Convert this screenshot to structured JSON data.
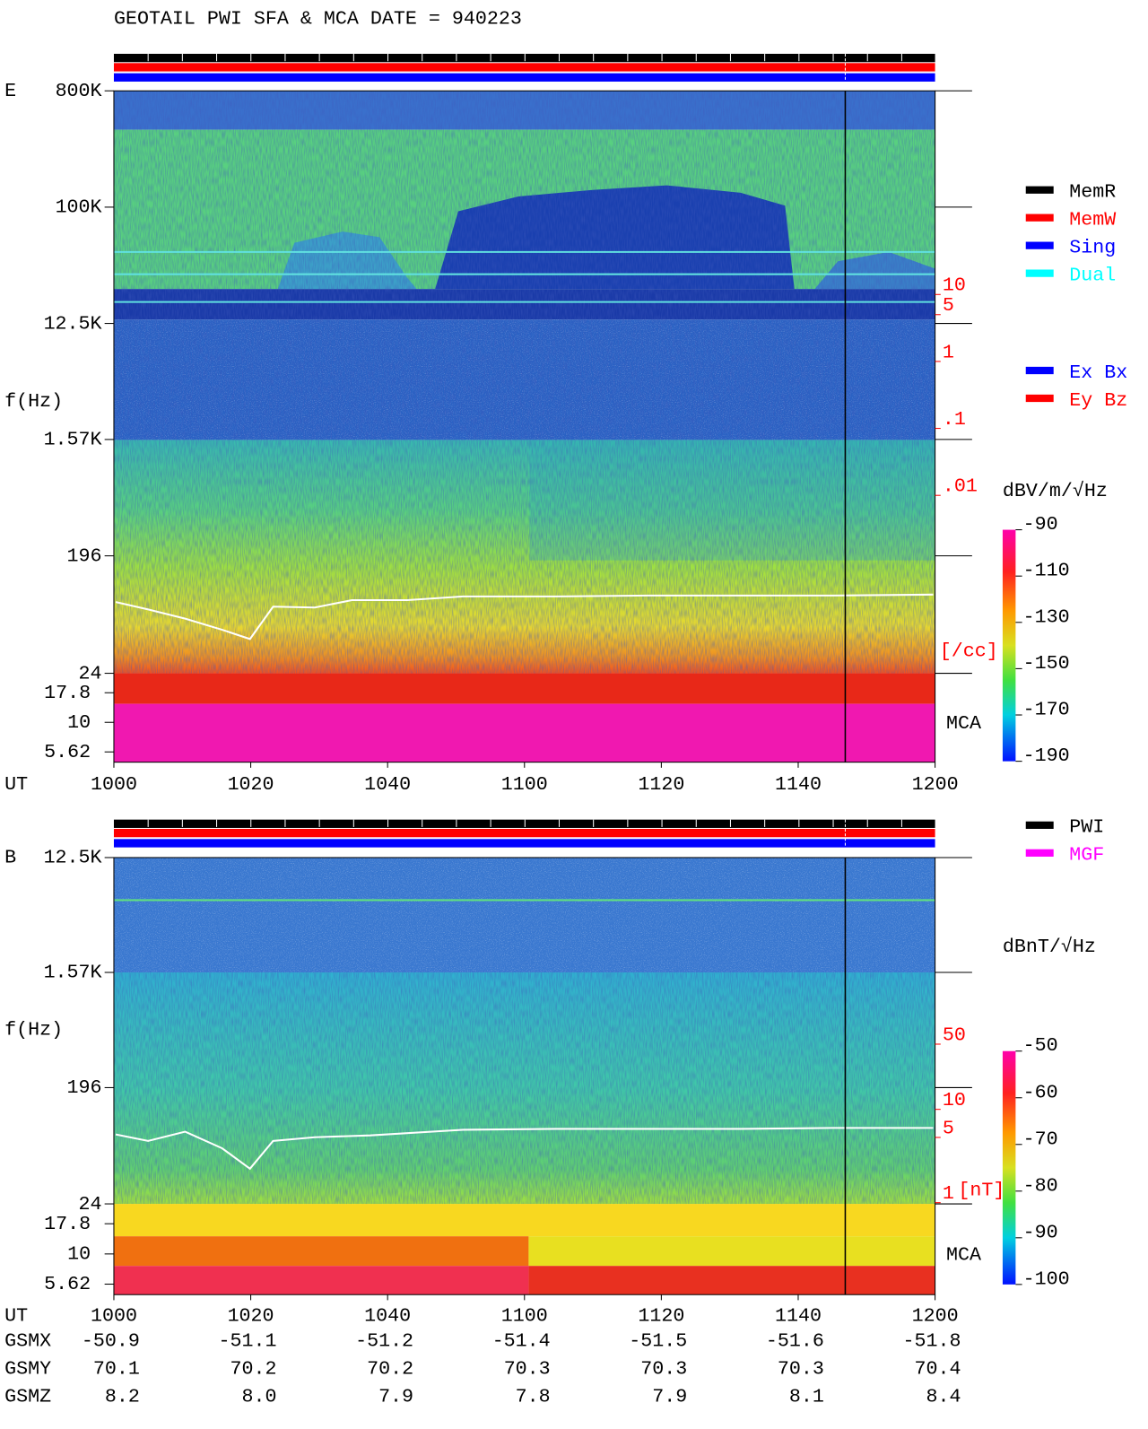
{
  "header": {
    "title": "GEOTAIL  PWI SFA & MCA   DATE = 940223"
  },
  "chart_data": [
    {
      "type": "spectrogram",
      "panel_label": "E",
      "y_label": "f(Hz)",
      "x_label": "UT",
      "x": [
        "1000",
        "1020",
        "1040",
        "1100",
        "1120",
        "1140",
        "1200"
      ],
      "log_y": true,
      "ylim": [
        24,
        800000
      ],
      "yticks": [
        {
          "value": 800000,
          "label": "800K"
        },
        {
          "value": 100000,
          "label": "100K"
        },
        {
          "value": 12500,
          "label": "12.5K"
        },
        {
          "value": 1570,
          "label": "1.57K"
        },
        196,
        24
      ],
      "mca_label": "MCA",
      "mca_ylim": [
        4.6,
        26
      ],
      "mca_yticks": [
        17.8,
        10,
        5.62
      ],
      "y2_label": "[/cc]",
      "y2_color": "#ff0000",
      "y2lim": [
        2.2e-05,
        11000
      ],
      "y2ticks": [
        10,
        5,
        1,
        {
          "value": 0.1,
          "label": ".1"
        },
        {
          "value": 0.01,
          "label": ".01"
        }
      ],
      "colorbar": {
        "label": "dBV/m/√Hz",
        "lim": [
          -190,
          -90
        ],
        "ticks": [
          -90,
          -110,
          -130,
          -150,
          -170,
          -190
        ]
      },
      "legend": [
        {
          "name": "MemR",
          "color": "#000000"
        },
        {
          "name": "MemW",
          "color": "#ff0000"
        },
        {
          "name": "Sing",
          "color": "#0000ff"
        },
        {
          "name": "Dual",
          "color": "#00ffff"
        }
      ],
      "component_legend": [
        {
          "name": "Ex Bx",
          "color": "#0000ff"
        },
        {
          "name": "Ey Bz",
          "color": "#ff0000"
        }
      ]
    },
    {
      "type": "spectrogram",
      "panel_label": "B",
      "y_label": "f(Hz)",
      "x_label": "UT",
      "x": [
        "1000",
        "1020",
        "1040",
        "1100",
        "1120",
        "1140",
        "1200"
      ],
      "log_y": true,
      "ylim": [
        24,
        12500
      ],
      "yticks": [
        {
          "value": 12500,
          "label": "12.5K"
        },
        {
          "value": 1570,
          "label": "1.57K"
        },
        196,
        24
      ],
      "mca_label": "MCA",
      "mca_ylim": [
        4.6,
        26
      ],
      "mca_yticks": [
        17.8,
        10,
        5.62
      ],
      "y2_label": "[nT]",
      "y2_color": "#ff0000",
      "y2lim": [
        0.97,
        5000
      ],
      "y2ticks": [
        50,
        10,
        5,
        1
      ],
      "colorbar": {
        "label": "dBnT/√Hz",
        "lim": [
          -100,
          -50
        ],
        "ticks": [
          -50,
          -60,
          -70,
          -80,
          -90,
          -100
        ]
      },
      "legend": [
        {
          "name": "PWI",
          "color": "#000000"
        },
        {
          "name": "MGF",
          "color": "#ff00ff"
        }
      ]
    }
  ],
  "orbit": {
    "rows": [
      {
        "name": "GSMX",
        "values": [
          "-50.9",
          "-51.1",
          "-51.2",
          "-51.4",
          "-51.5",
          "-51.6",
          "-51.8"
        ]
      },
      {
        "name": "GSMY",
        "values": [
          "70.1",
          "70.2",
          "70.2",
          "70.3",
          "70.3",
          "70.3",
          "70.4"
        ]
      },
      {
        "name": "GSMZ",
        "values": [
          "8.2",
          "8.0",
          "7.9",
          "7.8",
          "7.9",
          "8.1",
          "8.4"
        ]
      }
    ]
  }
}
